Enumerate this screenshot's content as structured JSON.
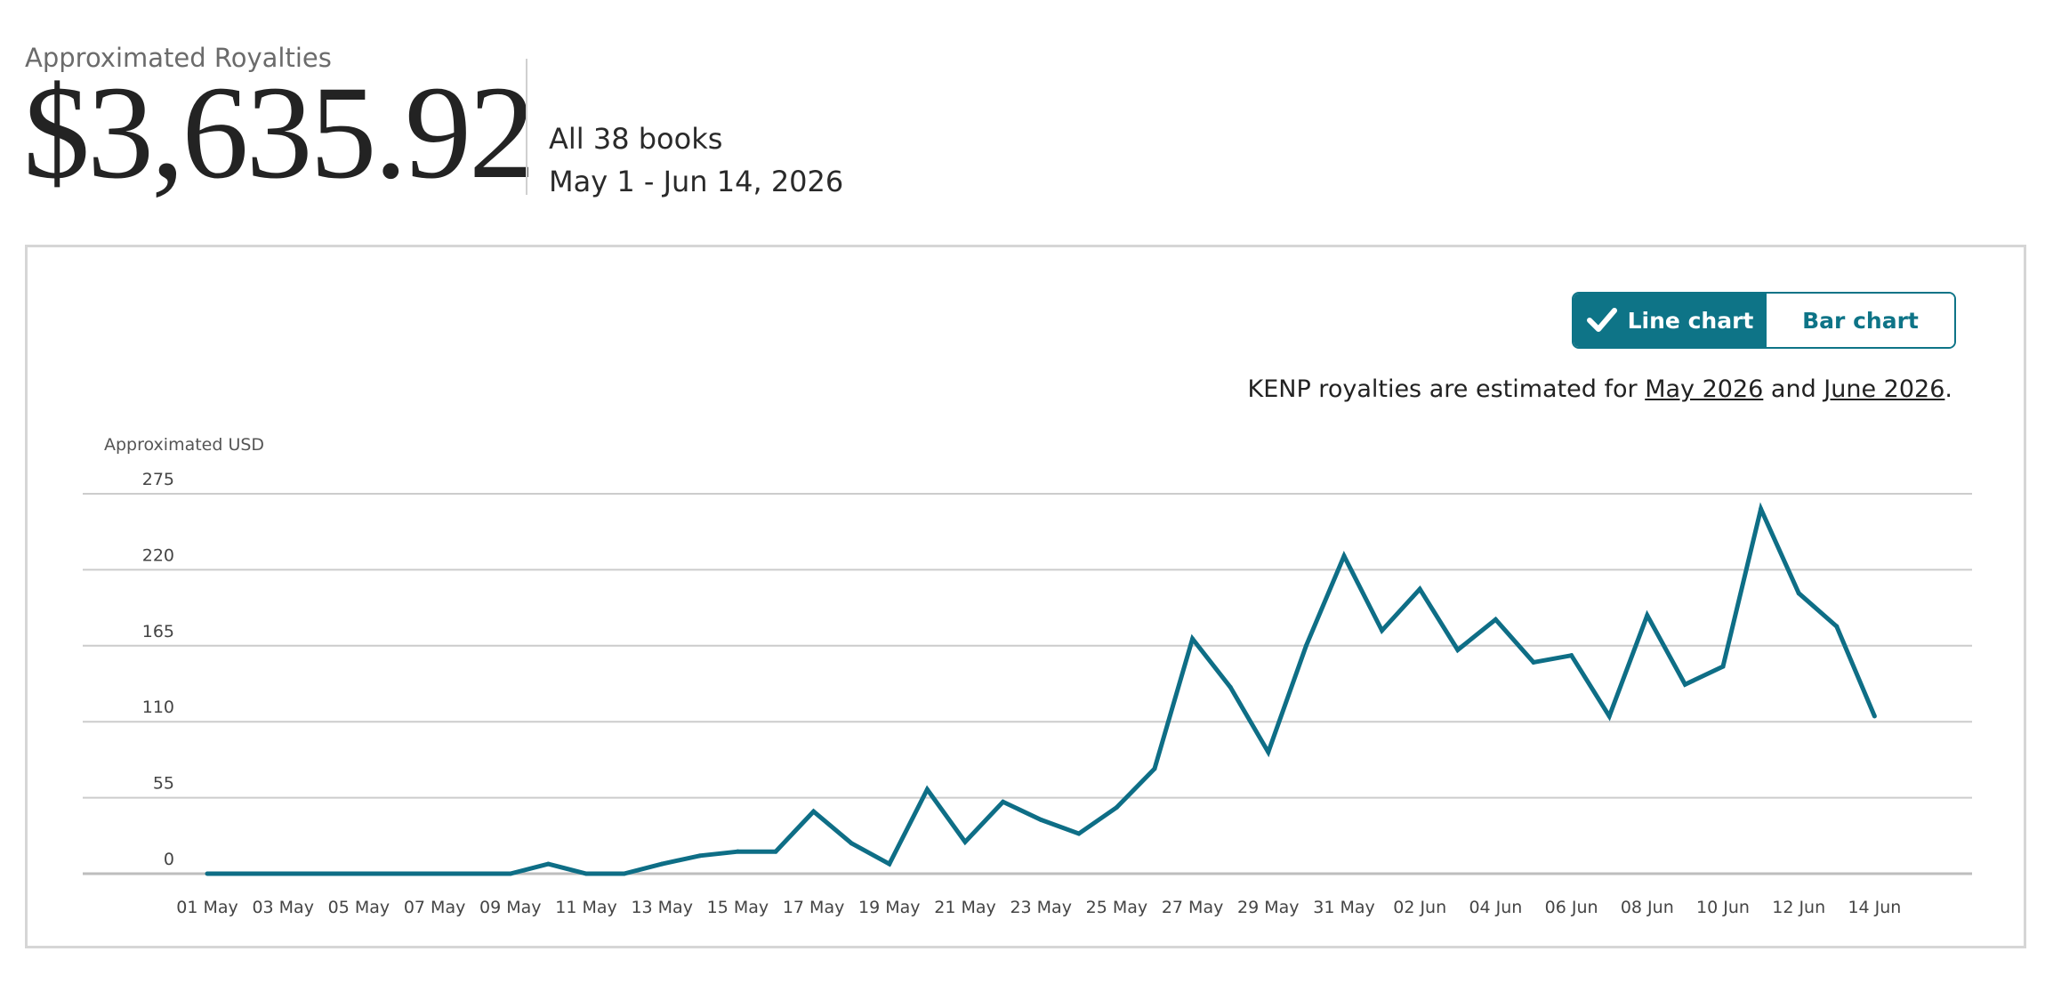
{
  "header": {
    "label": "Approximated Royalties",
    "total": "$3,635.92",
    "books": "All 38 books",
    "date_range": "May 1 - Jun 14, 2026"
  },
  "toggle": {
    "line_label": "Line chart",
    "bar_label": "Bar chart",
    "active": "line"
  },
  "note": {
    "prefix": "KENP royalties are estimated for ",
    "link1": "May 2026",
    "middle": " and ",
    "link2": "June 2026",
    "suffix": "."
  },
  "colors": {
    "accent": "#0e7487",
    "line": "#0e6e86",
    "grid": "#cccccc"
  },
  "icons": {
    "check": "checkmark-icon"
  },
  "chart_data": {
    "type": "line",
    "ylabel": "Approximated USD",
    "ylim": [
      0,
      275
    ],
    "yticks": [
      0,
      55,
      110,
      165,
      220,
      275
    ],
    "grid": true,
    "x": [
      "01 May",
      "02 May",
      "03 May",
      "04 May",
      "05 May",
      "06 May",
      "07 May",
      "08 May",
      "09 May",
      "10 May",
      "11 May",
      "12 May",
      "13 May",
      "14 May",
      "15 May",
      "16 May",
      "17 May",
      "18 May",
      "19 May",
      "20 May",
      "21 May",
      "22 May",
      "23 May",
      "24 May",
      "25 May",
      "26 May",
      "27 May",
      "28 May",
      "29 May",
      "30 May",
      "31 May",
      "01 Jun",
      "02 Jun",
      "03 Jun",
      "04 Jun",
      "05 Jun",
      "06 Jun",
      "07 Jun",
      "08 Jun",
      "09 Jun",
      "10 Jun",
      "11 Jun",
      "12 Jun",
      "13 Jun",
      "14 Jun"
    ],
    "xtick_labels": [
      "01 May",
      "03 May",
      "05 May",
      "07 May",
      "09 May",
      "11 May",
      "13 May",
      "15 May",
      "17 May",
      "19 May",
      "21 May",
      "23 May",
      "25 May",
      "27 May",
      "29 May",
      "31 May",
      "02 Jun",
      "04 Jun",
      "06 Jun",
      "08 Jun",
      "10 Jun",
      "12 Jun",
      "14 Jun"
    ],
    "series": [
      {
        "values": [
          0,
          0,
          0,
          0,
          0,
          0,
          0,
          0,
          0,
          7,
          0,
          0,
          7,
          13,
          16,
          16,
          45,
          22,
          7,
          61,
          23,
          52,
          39,
          29,
          48,
          76,
          170,
          135,
          88,
          165,
          230,
          176,
          206,
          162,
          184,
          153,
          158,
          114,
          187,
          137,
          150,
          264,
          203,
          179,
          114
        ]
      }
    ]
  }
}
